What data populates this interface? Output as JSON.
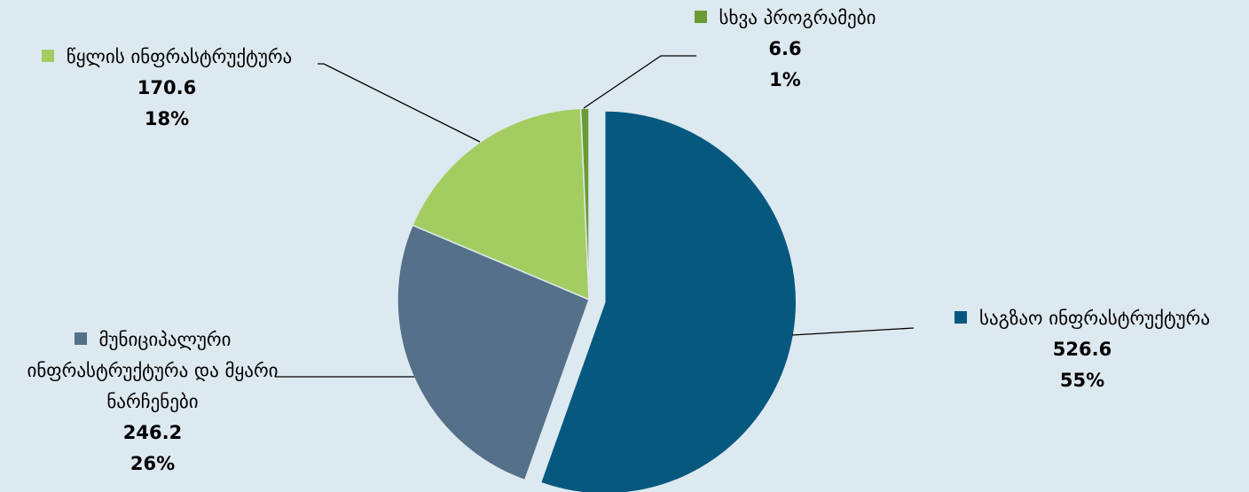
{
  "chart_data": {
    "type": "pie",
    "categories": [
      "საგზაო ინფრასტრუქტურა",
      "მუნიციპალური ინფრასტრუქტურა და მყარი ნარჩენები",
      "წყლის ინფრასტრუქტურა",
      "სხვა პროგრამები"
    ],
    "values": [
      526.6,
      246.2,
      170.6,
      6.6
    ],
    "percent_labels": [
      "55%",
      "26%",
      "18%",
      "1%"
    ],
    "colors": [
      "#06587f",
      "#557089",
      "#a3cd61",
      "#6a9a34"
    ],
    "exploded": [
      true,
      false,
      false,
      false
    ]
  }
}
